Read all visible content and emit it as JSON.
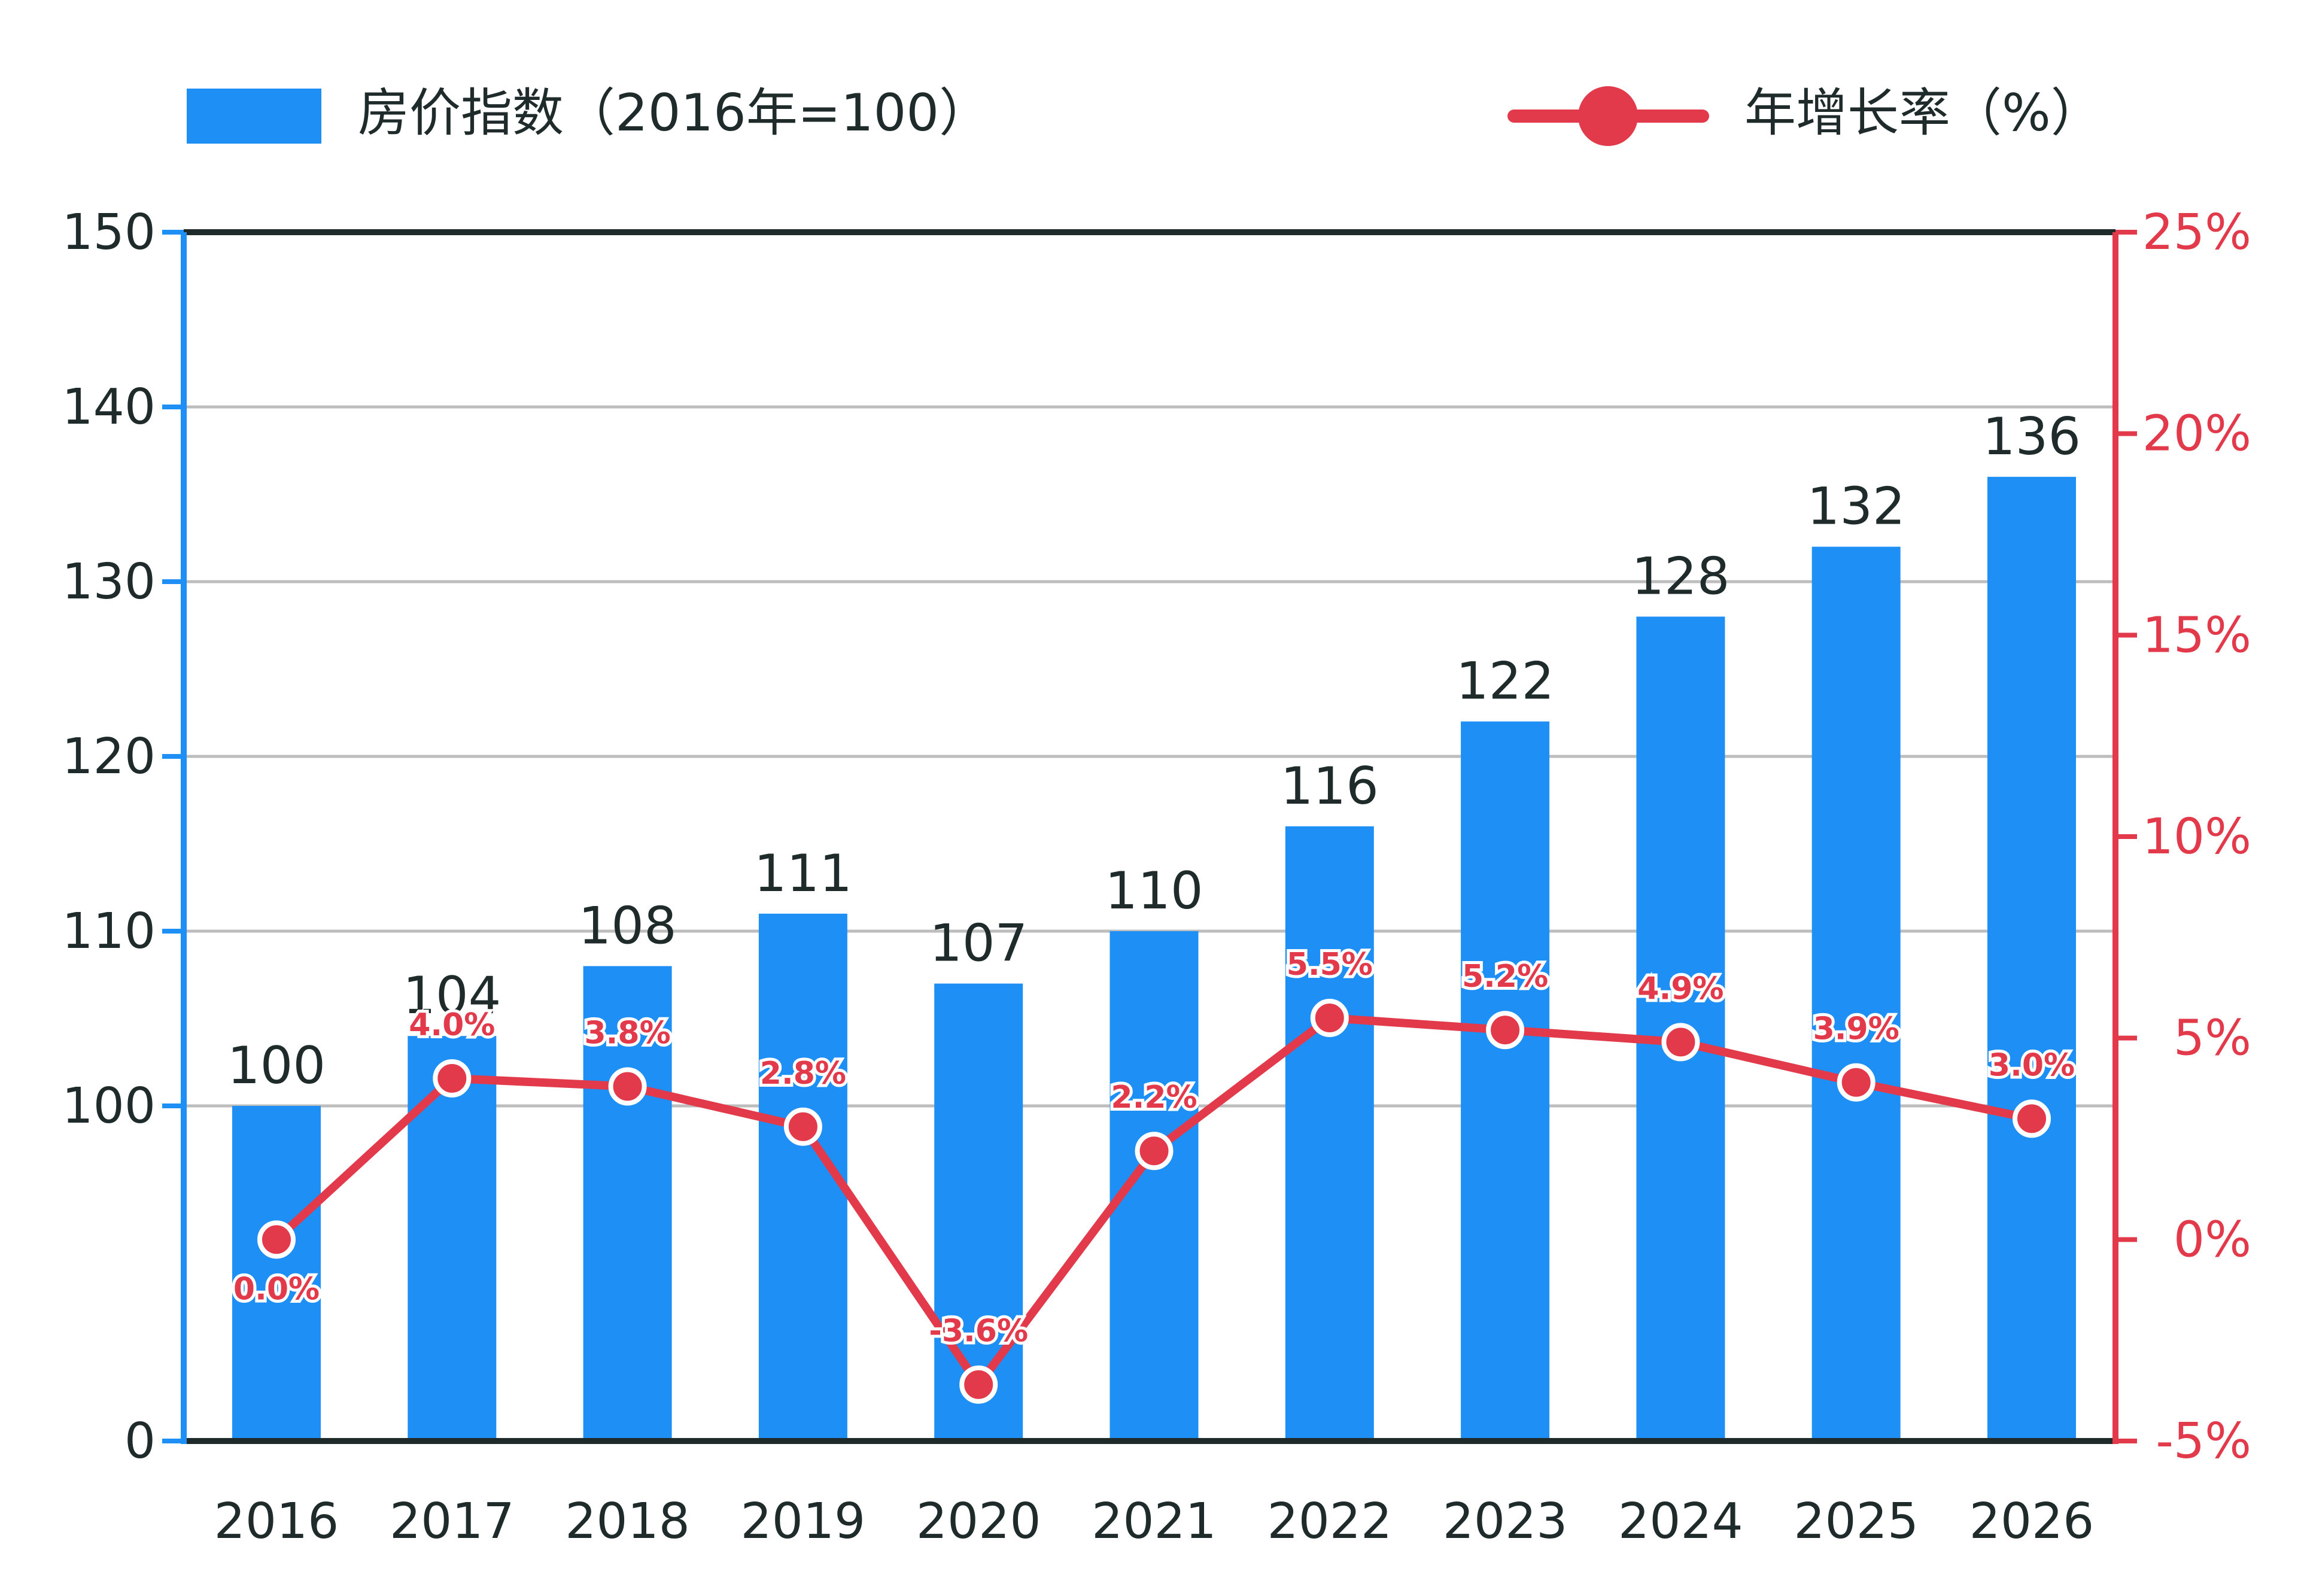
{
  "legend": {
    "bar_label": "房价指数（2016年=100）",
    "line_label": "年增长率（%）"
  },
  "colors": {
    "bar": "#1e8ff5",
    "line": "#e23a4a",
    "axis_dark": "#1f2a2a",
    "grid": "#bdbdbd"
  },
  "chart_data": {
    "type": "bar",
    "categories": [
      "2016",
      "2017",
      "2018",
      "2019",
      "2020",
      "2021",
      "2022",
      "2023",
      "2024",
      "2025",
      "2026"
    ],
    "series": [
      {
        "name": "房价指数（2016年=100）",
        "type": "bar",
        "axis": "left",
        "values": [
          100,
          104,
          108,
          111,
          107,
          110,
          116,
          122,
          128,
          132,
          136
        ],
        "labels": [
          "100",
          "104",
          "108",
          "111",
          "107",
          "110",
          "116",
          "122",
          "128",
          "132",
          "136"
        ]
      },
      {
        "name": "年增长率（%）",
        "type": "line",
        "axis": "right",
        "values": [
          0.0,
          4.0,
          3.8,
          2.8,
          -3.6,
          2.2,
          5.5,
          5.2,
          4.9,
          3.9,
          3.0
        ],
        "labels": [
          "0.0%",
          "4.0%",
          "3.8%",
          "2.8%",
          "-3.6%",
          "2.2%",
          "5.5%",
          "5.2%",
          "4.9%",
          "3.9%",
          "3.0%"
        ]
      }
    ],
    "left_axis": {
      "ticks": [
        0,
        100,
        110,
        120,
        130,
        140,
        150
      ],
      "tick_labels": [
        "0",
        "100",
        "110",
        "120",
        "130",
        "140",
        "150"
      ],
      "ylim": [
        0,
        150
      ],
      "axis_break": "between 0 and 100"
    },
    "right_axis": {
      "ticks": [
        -5,
        0,
        5,
        10,
        15,
        20,
        25
      ],
      "tick_labels": [
        "-5%",
        "0%",
        "5%",
        "10%",
        "15%",
        "20%",
        "25%"
      ],
      "ylim": [
        -5,
        25
      ]
    },
    "grid": true,
    "legend_position": "top"
  }
}
